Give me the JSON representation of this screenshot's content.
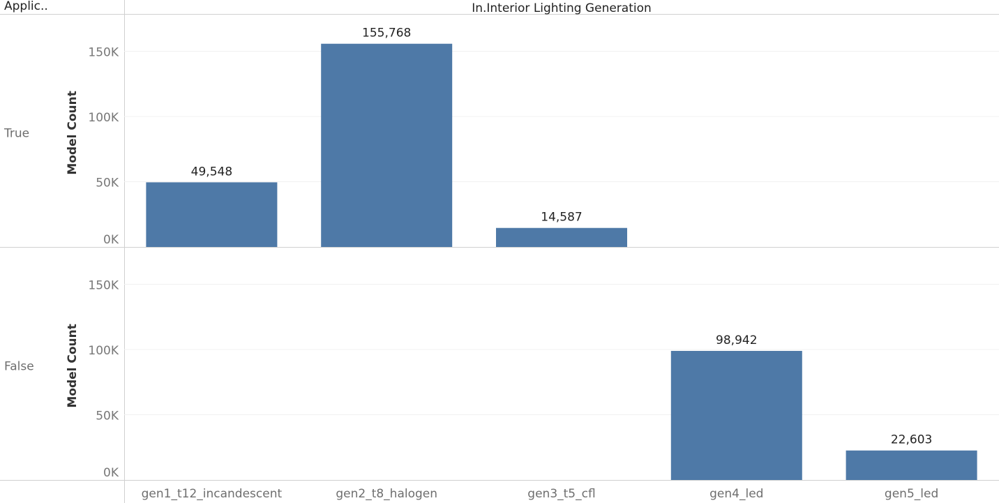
{
  "chart_data": {
    "type": "bar",
    "row_field": "Applic..",
    "column_field": "In.Interior Lighting Generation",
    "ylabel": "Model Count",
    "categories": [
      "gen1_t12_incandescent",
      "gen2_t8_halogen",
      "gen3_t5_cfl",
      "gen4_led",
      "gen5_led"
    ],
    "ylim": [
      0,
      175000
    ],
    "yticks": [
      0,
      50000,
      100000,
      150000
    ],
    "ytick_labels": [
      "0K",
      "50K",
      "100K",
      "150K"
    ],
    "grid": true,
    "bar_color": "#4e79a7",
    "panels": [
      {
        "label": "True",
        "values": [
          49548,
          155768,
          14587,
          null,
          null
        ],
        "data_labels": [
          "49,548",
          "155,768",
          "14,587",
          "",
          ""
        ]
      },
      {
        "label": "False",
        "values": [
          null,
          null,
          null,
          98942,
          22603
        ],
        "data_labels": [
          "",
          "",
          "",
          "98,942",
          "22,603"
        ]
      }
    ]
  }
}
